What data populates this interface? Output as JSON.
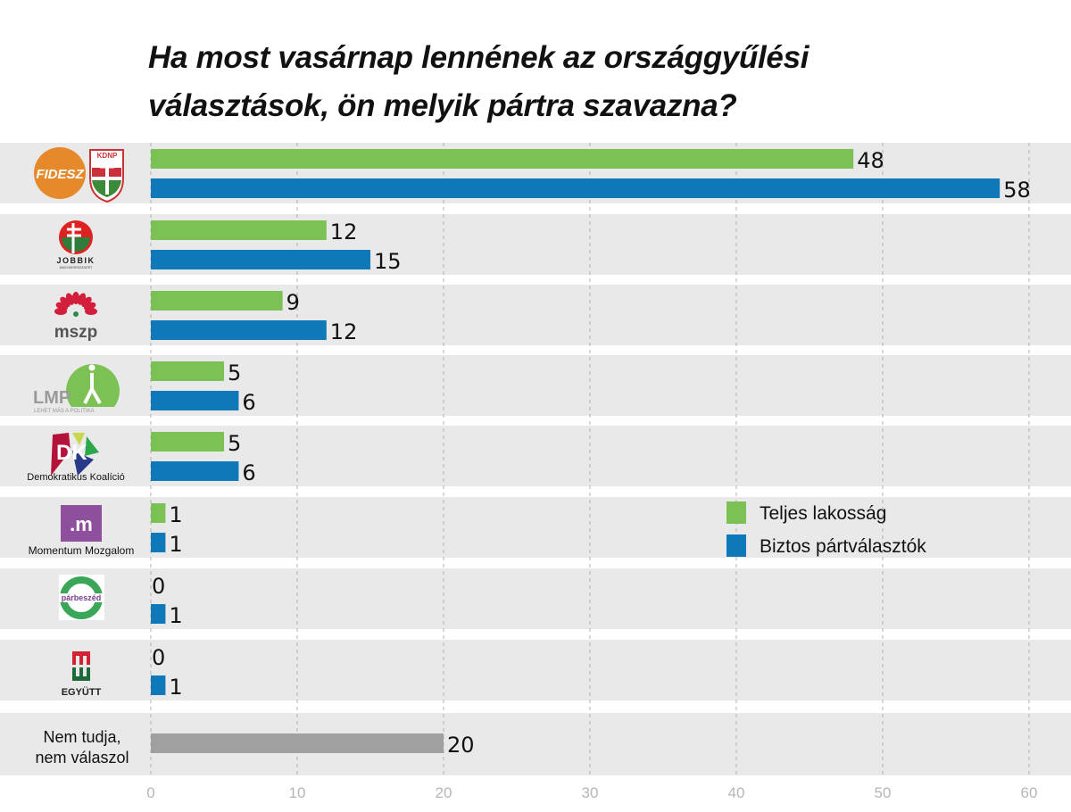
{
  "title_line1": "Ha most vasárnap lennének az országgyűlési",
  "title_line2": "választások, ön melyik pártra szavazna?",
  "chart_data": {
    "type": "bar",
    "orientation": "horizontal",
    "title": "Ha most vasárnap lennének az országgyűlési választások, ön melyik pártra szavazna?",
    "categories": [
      "Fidesz-KDNP",
      "Jobbik",
      "MSZP",
      "LMP",
      "Demokratikus Koalíció",
      "Momentum Mozgalom",
      "Párbeszéd",
      "Együtt",
      "Nem tudja, nem válaszol"
    ],
    "category_labels": [
      "",
      "",
      "",
      "",
      "Demokratikus Koalíció",
      "Momentum Mozgalom",
      "",
      "",
      "Nem tudja,\nnem válaszol"
    ],
    "logo_text": [
      "FIDESZ KDNP",
      "JOBBIK MAGYARORSZÁGÉRT MOZGALOM",
      "mszp",
      "LMP LEHET MÁS A POLITIKA",
      "DK",
      ".m",
      "párbeszéd",
      "EGYÜTT",
      ""
    ],
    "series": [
      {
        "name": "Teljes lakosság",
        "color": "#7cc156",
        "values": [
          48,
          12,
          9,
          5,
          5,
          1,
          0,
          0,
          null
        ]
      },
      {
        "name": "Biztos pártválasztók",
        "color": "#0f78b8",
        "values": [
          58,
          15,
          12,
          6,
          6,
          1,
          1,
          1,
          null
        ]
      },
      {
        "name": "",
        "color": "#a0a0a0",
        "values": [
          null,
          null,
          null,
          null,
          null,
          null,
          null,
          null,
          20
        ]
      }
    ],
    "xlim": [
      0,
      60
    ],
    "xticks": [
      0,
      10,
      20,
      30,
      40,
      50,
      60
    ],
    "grid": "vertical dashed",
    "legend_position": "right-middle"
  }
}
